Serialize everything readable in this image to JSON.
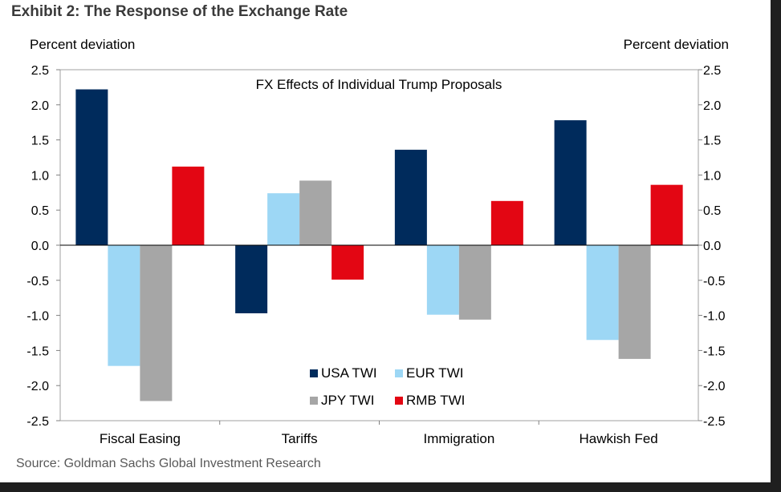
{
  "exhibit_title": "Exhibit 2: The Response of the Exchange Rate",
  "source": "Source: Goldman Sachs Global Investment Research",
  "colors": {
    "USA TWI": "#002b5c",
    "EUR TWI": "#9dd7f5",
    "JPY TWI": "#a6a6a6",
    "RMB TWI": "#e30613"
  },
  "chart_data": {
    "type": "bar",
    "title": "FX Effects of Individual Trump Proposals",
    "ylabel_left": "Percent deviation",
    "ylabel_right": "Percent deviation",
    "ylim": [
      -2.5,
      2.5
    ],
    "yticks": [
      "2.5",
      "2.0",
      "1.5",
      "1.0",
      "0.5",
      "0.0",
      "-0.5",
      "-1.0",
      "-1.5",
      "-2.0",
      "-2.5"
    ],
    "categories": [
      "Fiscal Easing",
      "Tariffs",
      "Immigration",
      "Hawkish Fed"
    ],
    "series": [
      {
        "name": "USA TWI",
        "values": [
          2.22,
          -0.97,
          1.36,
          1.78
        ]
      },
      {
        "name": "EUR TWI",
        "values": [
          -1.72,
          0.74,
          -0.99,
          -1.35
        ]
      },
      {
        "name": "JPY TWI",
        "values": [
          -2.22,
          0.92,
          -1.06,
          -1.62
        ]
      },
      {
        "name": "RMB TWI",
        "values": [
          1.12,
          -0.49,
          0.63,
          0.86
        ]
      }
    ],
    "legend": [
      "USA TWI",
      "EUR TWI",
      "JPY TWI",
      "RMB TWI"
    ],
    "grid": false
  }
}
